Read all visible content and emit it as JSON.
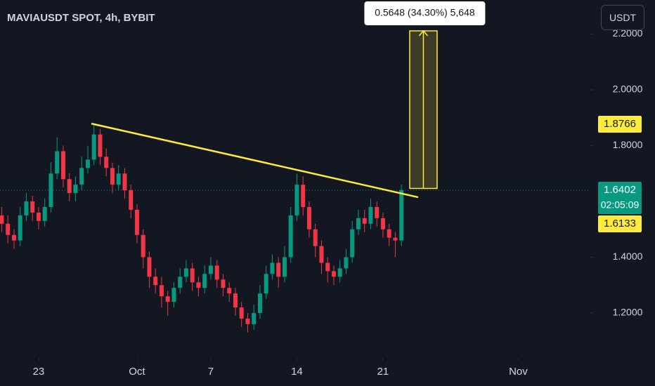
{
  "chart_data": {
    "type": "candlestick",
    "title": "MAVIAUSDT SPOT, 4h, BYBIT",
    "currency_button": "USDT",
    "up_color": "#089981",
    "down_color": "#f23645",
    "x": [
      -3,
      -2.5,
      -2,
      -1.5,
      -1,
      -0.5,
      0,
      0.5,
      1,
      1.5,
      2,
      2.5,
      3,
      3.5,
      4,
      4.5,
      5,
      5.5,
      6,
      6.5,
      7,
      7.5,
      8,
      8.5,
      9,
      9.5,
      10,
      10.5,
      11,
      11.5,
      12,
      12.5,
      13,
      13.5,
      14,
      14.5,
      15,
      15.5,
      16,
      16.5,
      17,
      17.5,
      18,
      18.5,
      19,
      19.5,
      20,
      20.5,
      21,
      21.5,
      22,
      22.5,
      23,
      23.5,
      24,
      24.5,
      25,
      25.5,
      26,
      26.5,
      27,
      27.5,
      28,
      28.5,
      29,
      29.5
    ],
    "open": [
      1.55,
      1.52,
      1.48,
      1.46,
      1.55,
      1.6,
      1.56,
      1.53,
      1.58,
      1.7,
      1.78,
      1.68,
      1.63,
      1.66,
      1.72,
      1.75,
      1.84,
      1.76,
      1.72,
      1.66,
      1.7,
      1.64,
      1.57,
      1.48,
      1.4,
      1.33,
      1.3,
      1.26,
      1.24,
      1.29,
      1.33,
      1.36,
      1.31,
      1.29,
      1.34,
      1.37,
      1.32,
      1.29,
      1.27,
      1.22,
      1.18,
      1.16,
      1.2,
      1.27,
      1.34,
      1.38,
      1.33,
      1.4,
      1.55,
      1.66,
      1.58,
      1.5,
      1.44,
      1.38,
      1.35,
      1.33,
      1.36,
      1.4,
      1.5,
      1.54,
      1.52,
      1.58,
      1.54,
      1.5,
      1.47,
      1.46
    ],
    "high": [
      1.58,
      1.55,
      1.5,
      1.58,
      1.63,
      1.62,
      1.58,
      1.61,
      1.74,
      1.83,
      1.8,
      1.7,
      1.69,
      1.76,
      1.8,
      1.88,
      1.86,
      1.79,
      1.74,
      1.73,
      1.72,
      1.66,
      1.59,
      1.5,
      1.42,
      1.36,
      1.33,
      1.28,
      1.31,
      1.36,
      1.39,
      1.38,
      1.33,
      1.37,
      1.4,
      1.39,
      1.34,
      1.31,
      1.29,
      1.24,
      1.2,
      1.23,
      1.3,
      1.37,
      1.41,
      1.4,
      1.44,
      1.58,
      1.7,
      1.69,
      1.6,
      1.52,
      1.46,
      1.4,
      1.37,
      1.39,
      1.43,
      1.53,
      1.57,
      1.57,
      1.61,
      1.6,
      1.56,
      1.52,
      1.49,
      1.66
    ],
    "low": [
      1.49,
      1.45,
      1.43,
      1.44,
      1.53,
      1.53,
      1.5,
      1.51,
      1.56,
      1.68,
      1.65,
      1.6,
      1.6,
      1.64,
      1.7,
      1.73,
      1.73,
      1.69,
      1.63,
      1.64,
      1.61,
      1.54,
      1.45,
      1.36,
      1.29,
      1.27,
      1.22,
      1.19,
      1.22,
      1.27,
      1.31,
      1.28,
      1.26,
      1.27,
      1.32,
      1.29,
      1.26,
      1.24,
      1.19,
      1.15,
      1.13,
      1.14,
      1.18,
      1.25,
      1.32,
      1.29,
      1.31,
      1.38,
      1.53,
      1.55,
      1.47,
      1.4,
      1.34,
      1.31,
      1.3,
      1.31,
      1.34,
      1.38,
      1.48,
      1.49,
      1.5,
      1.51,
      1.47,
      1.44,
      1.4,
      1.44
    ],
    "close": [
      1.52,
      1.48,
      1.46,
      1.55,
      1.6,
      1.56,
      1.53,
      1.58,
      1.7,
      1.78,
      1.68,
      1.63,
      1.66,
      1.72,
      1.75,
      1.84,
      1.76,
      1.72,
      1.66,
      1.7,
      1.64,
      1.57,
      1.48,
      1.4,
      1.33,
      1.3,
      1.26,
      1.24,
      1.29,
      1.33,
      1.36,
      1.31,
      1.29,
      1.34,
      1.37,
      1.32,
      1.29,
      1.27,
      1.22,
      1.18,
      1.16,
      1.2,
      1.27,
      1.34,
      1.38,
      1.33,
      1.4,
      1.55,
      1.66,
      1.58,
      1.5,
      1.44,
      1.38,
      1.35,
      1.33,
      1.36,
      1.4,
      1.5,
      1.54,
      1.52,
      1.58,
      1.54,
      1.5,
      1.47,
      1.46,
      1.6402
    ],
    "xlim": [
      -3.14,
      44.86
    ],
    "xticks": [
      {
        "value": 0,
        "label": "23"
      },
      {
        "value": 8,
        "label": "Oct"
      },
      {
        "value": 14,
        "label": "7"
      },
      {
        "value": 21,
        "label": "14"
      },
      {
        "value": 28,
        "label": "21"
      },
      {
        "value": 39,
        "label": "Nov"
      }
    ],
    "ylim": [
      1.039,
      2.322
    ],
    "yticks": [
      {
        "value": 1.2,
        "label": "1.2000"
      },
      {
        "value": 1.4,
        "label": "1.4000"
      },
      {
        "value": 1.8,
        "label": "1.8000"
      },
      {
        "value": 2.0,
        "label": "2.0000"
      },
      {
        "value": 2.2,
        "label": "2.2000"
      }
    ],
    "trendline": {
      "color": "#ffeb3b",
      "x": [
        4.29,
        30.86
      ],
      "y": [
        1.879,
        1.615
      ]
    },
    "measure": {
      "x": [
        30.17,
        32.4
      ],
      "y": [
        1.6466,
        2.2114
      ],
      "label": "0.5648 (34.30%) 5,648"
    },
    "last_price": {
      "value": 1.6402,
      "label": "1.6402",
      "countdown": "02:05:09"
    },
    "high_marker": {
      "value": 1.8766,
      "label": "1.8766"
    },
    "low_marker": {
      "value": 1.6133,
      "label": "1.6133"
    }
  }
}
